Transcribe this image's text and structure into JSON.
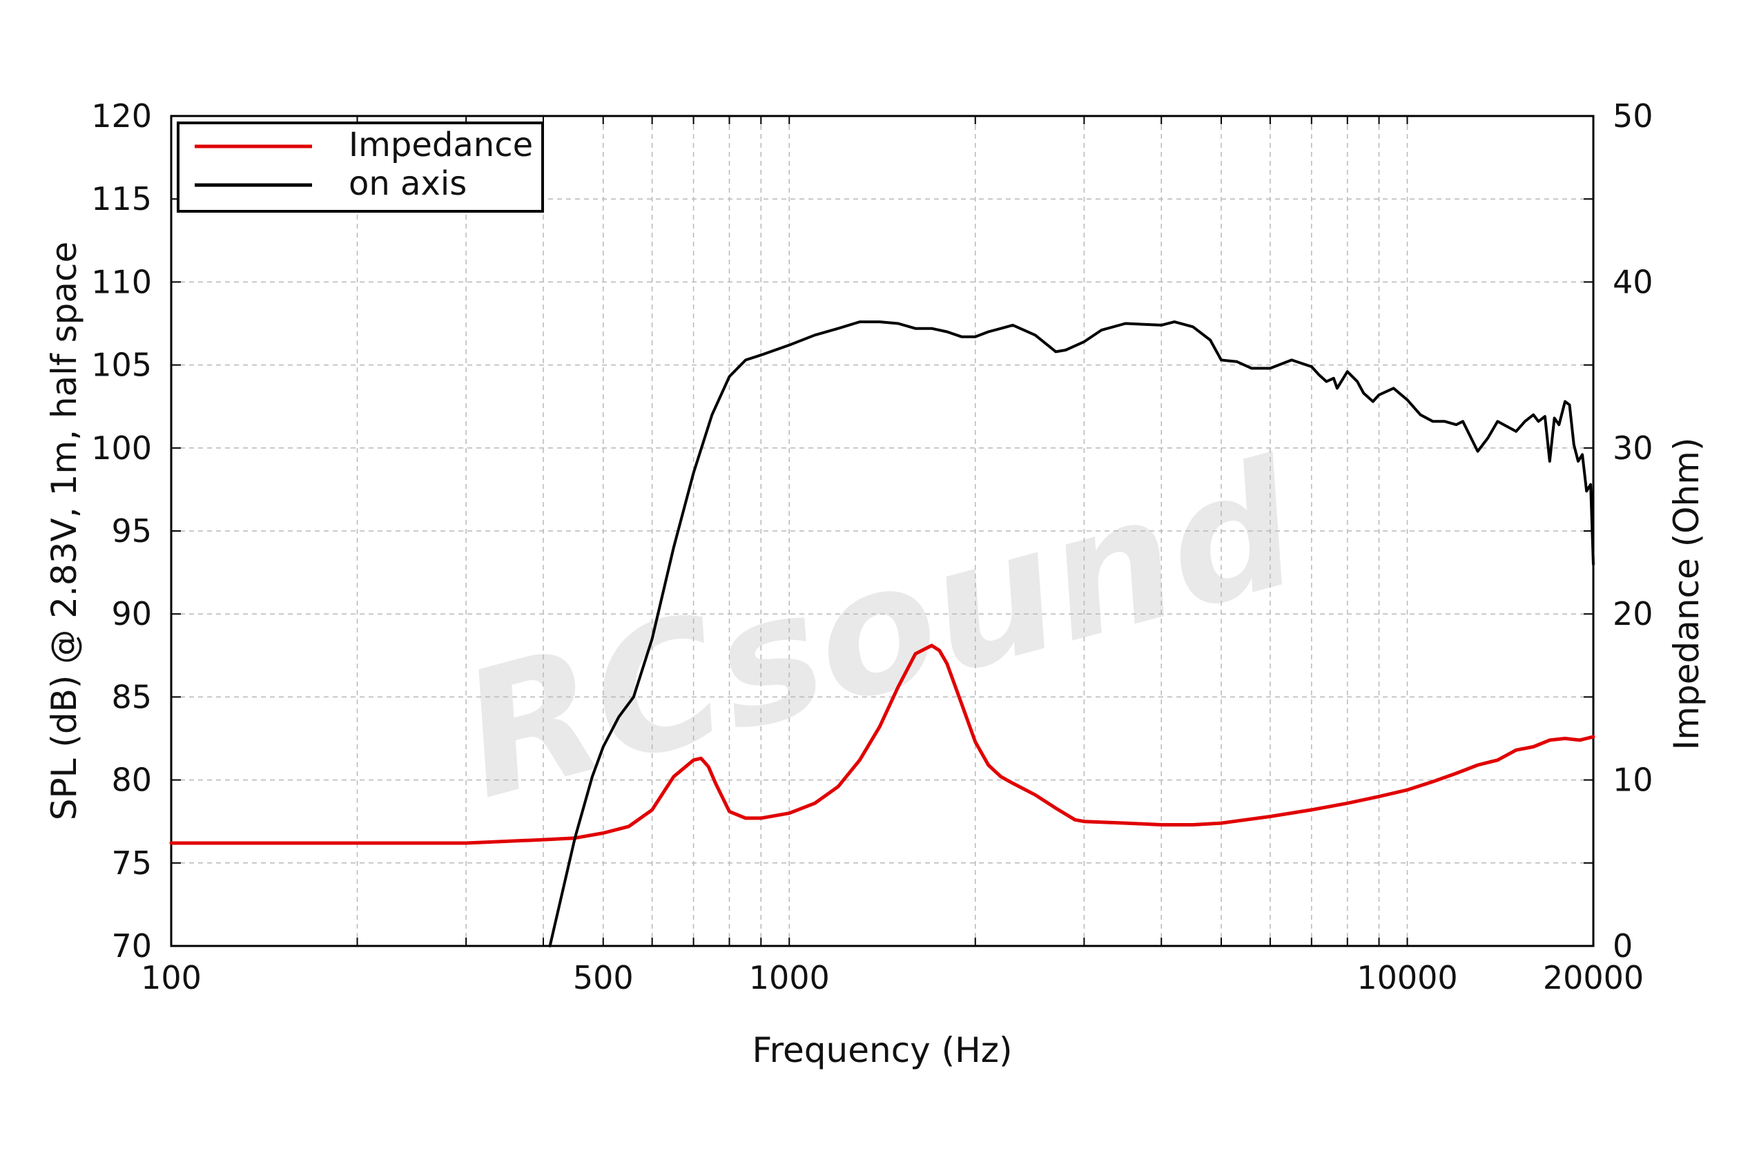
{
  "watermark": "RCsound",
  "chart_data": {
    "type": "line",
    "title": "",
    "xlabel": "Frequency (Hz)",
    "ylabel": "SPL (dB) @ 2.83V, 1m, half space",
    "y2label": "Impedance (Ohm)",
    "xscale": "log",
    "xlim": [
      100,
      20000
    ],
    "ylim": [
      70,
      120
    ],
    "y2lim": [
      0,
      50
    ],
    "xticks": [
      100,
      500,
      1000,
      10000,
      20000
    ],
    "yticks": [
      70,
      75,
      80,
      85,
      90,
      95,
      100,
      105,
      110,
      115,
      120
    ],
    "y2ticks": [
      0,
      10,
      20,
      30,
      40,
      50
    ],
    "grid": true,
    "legend_position": "top-left",
    "series": [
      {
        "name": "Impedance",
        "axis": "right",
        "color": "#e00000",
        "x": [
          100,
          200,
          300,
          400,
          450,
          500,
          550,
          600,
          650,
          700,
          720,
          740,
          760,
          800,
          850,
          900,
          1000,
          1100,
          1200,
          1300,
          1400,
          1500,
          1600,
          1700,
          1750,
          1800,
          1900,
          2000,
          2100,
          2200,
          2300,
          2500,
          2700,
          2900,
          3000,
          3500,
          4000,
          4500,
          5000,
          6000,
          7000,
          8000,
          9000,
          10000,
          11000,
          12000,
          13000,
          14000,
          15000,
          16000,
          17000,
          18000,
          19000,
          20000
        ],
        "y": [
          6.2,
          6.2,
          6.2,
          6.4,
          6.5,
          6.8,
          7.2,
          8.2,
          10.2,
          11.2,
          11.3,
          10.8,
          9.8,
          8.1,
          7.7,
          7.7,
          8.0,
          8.6,
          9.6,
          11.2,
          13.2,
          15.6,
          17.6,
          18.1,
          17.8,
          17.0,
          14.6,
          12.3,
          10.9,
          10.2,
          9.8,
          9.1,
          8.3,
          7.6,
          7.5,
          7.4,
          7.3,
          7.3,
          7.4,
          7.8,
          8.2,
          8.6,
          9.0,
          9.4,
          9.9,
          10.4,
          10.9,
          11.2,
          11.8,
          12.0,
          12.4,
          12.5,
          12.4,
          12.6
        ]
      },
      {
        "name": "on axis",
        "axis": "left",
        "color": "#000000",
        "x": [
          410,
          450,
          480,
          500,
          530,
          560,
          600,
          650,
          700,
          750,
          800,
          850,
          900,
          1000,
          1100,
          1200,
          1300,
          1400,
          1500,
          1600,
          1700,
          1800,
          1900,
          2000,
          2100,
          2200,
          2300,
          2500,
          2700,
          2800,
          3000,
          3200,
          3500,
          4000,
          4200,
          4500,
          4800,
          5000,
          5300,
          5600,
          6000,
          6500,
          7000,
          7200,
          7400,
          7600,
          7700,
          8000,
          8300,
          8500,
          8800,
          9000,
          9500,
          10000,
          10500,
          11000,
          11500,
          12000,
          12300,
          13000,
          13500,
          14000,
          15000,
          15500,
          16000,
          16300,
          16700,
          17000,
          17300,
          17600,
          18000,
          18300,
          18600,
          18900,
          19200,
          19500,
          19800,
          20000
        ],
        "y": [
          70.0,
          76.5,
          80.2,
          82.0,
          83.8,
          85.0,
          88.5,
          94.0,
          98.5,
          102.0,
          104.3,
          105.3,
          105.6,
          106.2,
          106.8,
          107.2,
          107.6,
          107.6,
          107.5,
          107.2,
          107.2,
          107.0,
          106.7,
          106.7,
          107.0,
          107.2,
          107.4,
          106.8,
          105.8,
          105.9,
          106.4,
          107.1,
          107.5,
          107.4,
          107.6,
          107.3,
          106.5,
          105.3,
          105.2,
          104.8,
          104.8,
          105.3,
          104.9,
          104.4,
          104.0,
          104.2,
          103.6,
          104.6,
          104.0,
          103.3,
          102.8,
          103.2,
          103.6,
          102.9,
          102.0,
          101.6,
          101.6,
          101.4,
          101.6,
          99.8,
          100.6,
          101.6,
          101.0,
          101.6,
          102.0,
          101.6,
          101.9,
          99.2,
          101.8,
          101.4,
          102.8,
          102.6,
          100.2,
          99.2,
          99.6,
          97.4,
          97.8,
          93.0
        ]
      }
    ]
  }
}
